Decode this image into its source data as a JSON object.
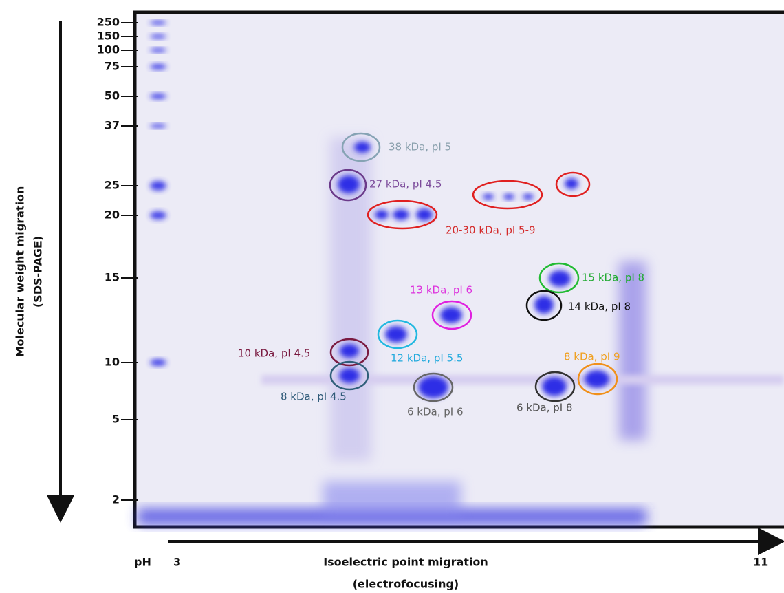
{
  "y_axis": {
    "title": [
      "Molecular weight migration",
      "(SDS-PAGE)"
    ],
    "markers": [
      "250",
      "150",
      "100",
      "75",
      "50",
      "37",
      "25",
      "20",
      "15",
      "10",
      "5",
      "2"
    ]
  },
  "x_axis": {
    "ph_label": "pH",
    "start": "3",
    "end": "11",
    "title": [
      "Isoelectric point migration",
      "(electrofocusing)"
    ]
  },
  "spots": [
    {
      "label": "38 kDa, pI 5"
    },
    {
      "label": "27 kDa, pI 4.5"
    },
    {
      "label": "20-30 kDa, pI 5-9"
    },
    {
      "label": "15 kDa, pI 8"
    },
    {
      "label": "14 kDa, pI 8"
    },
    {
      "label": "13 kDa, pI 6"
    },
    {
      "label": "12 kDa, pI 5.5"
    },
    {
      "label": "10 kDa, pI 4.5"
    },
    {
      "label": "8 kDa, pI 4.5"
    },
    {
      "label": "6 kDa, pI 6"
    },
    {
      "label": "6 kDa, pI 8"
    },
    {
      "label": "8 kDa, pI 9"
    }
  ]
}
